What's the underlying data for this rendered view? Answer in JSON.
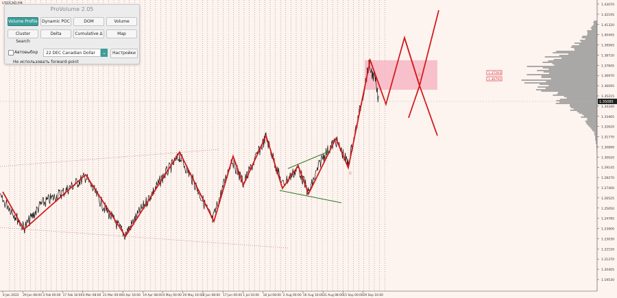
{
  "window": {
    "symbol": "USDCAD,H4"
  },
  "panel": {
    "title": "ProVolume 2.05",
    "buttons": [
      {
        "label": "Volume Profile",
        "active": true
      },
      {
        "label": "Dynamic POC",
        "active": false
      },
      {
        "label": "DOM",
        "active": false
      },
      {
        "label": "Volume",
        "active": false
      },
      {
        "label": "Cluster Search",
        "active": false
      },
      {
        "label": "Delta",
        "active": false
      },
      {
        "label": "Cumulative Δ",
        "active": false
      },
      {
        "label": "Map",
        "active": false
      }
    ],
    "auto_select_label": "Автовыбор",
    "contract_value": "22 DEC Canadian Dollar",
    "settings_label": "Настройки",
    "forward_point_label": "Не использовать forward-point"
  },
  "price_axis": {
    "labels": [
      "1.43070",
      "1.42195",
      "1.41320",
      "1.40445",
      "1.39565",
      "1.38720",
      "1.37845",
      "1.36970",
      "1.36095",
      "1.35215",
      "1.34340",
      "1.33465",
      "1.32620",
      "1.31770",
      "1.30890",
      "1.30020",
      "1.29145",
      "1.28270",
      "1.27400",
      "1.26525",
      "1.25650",
      "1.24785",
      "1.23900",
      "1.23030",
      "1.22150",
      "1.21270",
      "1.20405",
      "1.19530"
    ],
    "current_price": "1.35085"
  },
  "time_axis": {
    "labels": [
      "4 Jan 2022",
      "29 Jan 08:00",
      "3 Feb 00:00",
      "17 Feb 16:00",
      "4 Mar 08:00",
      "21 Mar 00:00",
      "4 Apr 16:00",
      "19 Apr 08:00",
      "4 May 00:00",
      "20 May 16:00",
      "2 Jun 08:00",
      "17 Jun 00:00",
      "1 Jul 16:00",
      "18 Jul 08:00",
      "2 Aug 00:00",
      "16 Aug 16:00",
      "31 Aug 08:00",
      "15 Sep 00:00",
      "29 Sep 16:00"
    ]
  },
  "level_labels": [
    "1.37293",
    "1.36791"
  ],
  "zone_markers": [
    "0",
    "0",
    "0"
  ],
  "colors": {
    "background": "#fdf3ef",
    "zigzag": "#d41a1a",
    "wedge": "#2a7a1e",
    "zone": "#f7b6c4",
    "profile": "#9a9a9a",
    "accent": "#3d9e9a"
  }
}
